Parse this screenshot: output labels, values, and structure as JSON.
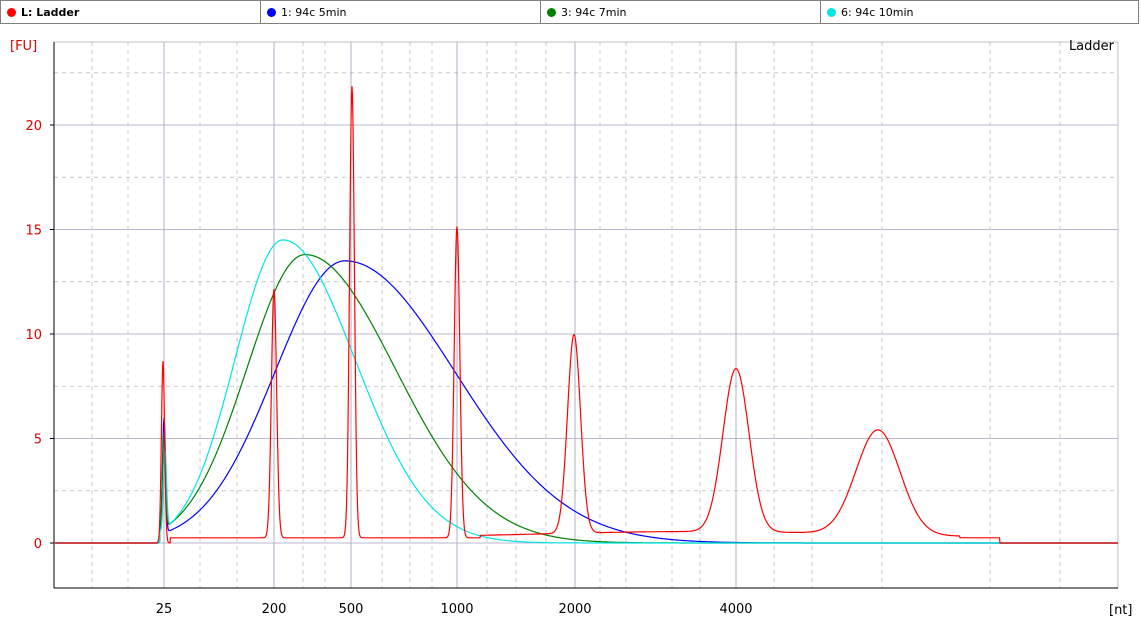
{
  "legend": [
    {
      "label": "L: Ladder",
      "color": "#ff0000",
      "bold": true
    },
    {
      "label": "1: 94c 5min",
      "color": "#0000ff",
      "bold": false
    },
    {
      "label": "3: 94c 7min",
      "color": "#008000",
      "bold": false
    },
    {
      "label": "6: 94c 10min",
      "color": "#00e5e5",
      "bold": false
    }
  ],
  "chart_data": {
    "type": "line",
    "title": "Ladder",
    "ylabel": "[FU]",
    "xlabel": "[nt]",
    "ylim": [
      -2,
      22.5
    ],
    "yticks": [
      0,
      5,
      10,
      15,
      20
    ],
    "xtick_labels": [
      "25",
      "200",
      "500",
      "1000",
      "2000",
      "4000"
    ],
    "grid": true,
    "series": [
      {
        "name": "L: Ladder",
        "color": "#ff0000",
        "x": [
          "start",
          "25",
          "200",
          "500",
          "1000",
          "2000",
          "4000",
          "end"
        ],
        "peaks": [
          {
            "x": "25",
            "value": 8.7
          },
          {
            "x": "200",
            "value": 11.9
          },
          {
            "x": "500",
            "value": 21.6
          },
          {
            "x": "1000",
            "value": 14.9
          },
          {
            "x": "2000",
            "value": 9.5
          },
          {
            "x": "4000",
            "value": 7.8
          },
          {
            "x": "6000",
            "value": 5.0
          }
        ]
      },
      {
        "name": "1: 94c 5min",
        "color": "#0000ff",
        "peak_value": 13.5
      },
      {
        "name": "3: 94c 7min",
        "color": "#008000",
        "peak_value": 13.8
      },
      {
        "name": "6: 94c 10min",
        "color": "#00e5e5",
        "peak_value": 14.5
      }
    ]
  }
}
